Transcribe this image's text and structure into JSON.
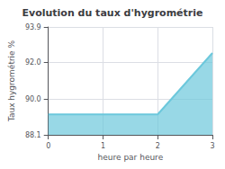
{
  "chart_data": {
    "type": "area",
    "title": "Evolution du taux d'hygrométrie",
    "xlabel": "heure par heure",
    "ylabel": "Taux hygrométrie %",
    "x": [
      0,
      1,
      2,
      3
    ],
    "values": [
      89.2,
      89.2,
      89.2,
      92.5
    ],
    "color": "#6cc8dc",
    "xlim": [
      0,
      3
    ],
    "ylim": [
      88.1,
      93.9
    ],
    "xticks": [
      0,
      1,
      2,
      3
    ],
    "yticks": [
      88.1,
      {
        "value": 90.0,
        "label": "90.0"
      },
      {
        "value": 92.0,
        "label": "92.0"
      },
      93.9
    ],
    "grid": true
  }
}
